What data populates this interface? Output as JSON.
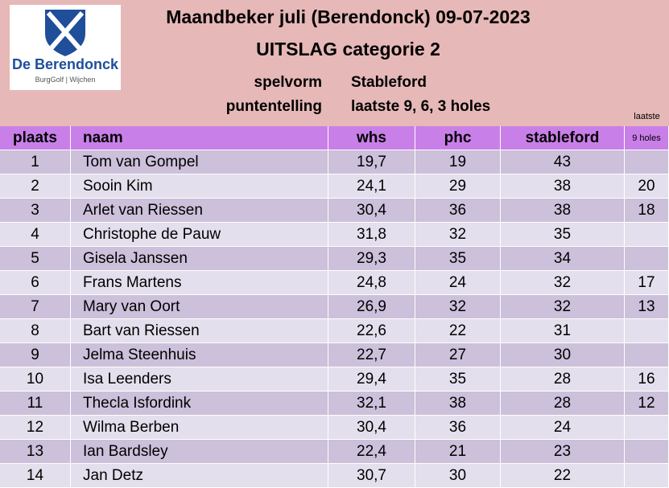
{
  "logo": {
    "name": "De Berendonck",
    "tagline": "BurgGolf | Wijchen"
  },
  "header": {
    "title": "Maandbeker juli (Berendonck) 09-07-2023",
    "subtitle": "UITSLAG categorie 2",
    "info": [
      [
        "spelvorm",
        "Stableford"
      ],
      [
        "puntentelling",
        "laatste 9, 6, 3 holes"
      ]
    ],
    "extra_col": [
      "laatste",
      "9 holes"
    ]
  },
  "table": {
    "columns": [
      "plaats",
      "naam",
      "whs",
      "phc",
      "stableford"
    ],
    "rows": [
      [
        "1",
        "Tom van Gompel",
        "19,7",
        "19",
        "43",
        null
      ],
      [
        "2",
        "Sooin Kim",
        "24,1",
        "29",
        "38",
        "20"
      ],
      [
        "3",
        "Arlet van Riessen",
        "30,4",
        "36",
        "38",
        "18"
      ],
      [
        "4",
        "Christophe de Pauw",
        "31,8",
        "32",
        "35",
        null
      ],
      [
        "5",
        "Gisela Janssen",
        "29,3",
        "35",
        "34",
        null
      ],
      [
        "6",
        "Frans Martens",
        "24,8",
        "24",
        "32",
        "17"
      ],
      [
        "7",
        "Mary van Oort",
        "26,9",
        "32",
        "32",
        "13"
      ],
      [
        "8",
        "Bart van Riessen",
        "22,6",
        "22",
        "31",
        null
      ],
      [
        "9",
        "Jelma Steenhuis",
        "22,7",
        "27",
        "30",
        null
      ],
      [
        "10",
        "Isa Leenders",
        "29,4",
        "35",
        "28",
        "16"
      ],
      [
        "11",
        "Thecla Isfordink",
        "32,1",
        "38",
        "28",
        "12"
      ],
      [
        "12",
        "Wilma Berben",
        "30,4",
        "36",
        "24",
        null
      ],
      [
        "13",
        "Ian Bardsley",
        "22,4",
        "21",
        "23",
        null
      ],
      [
        "14",
        "Jan Detz",
        "30,7",
        "30",
        "22",
        null
      ]
    ]
  }
}
